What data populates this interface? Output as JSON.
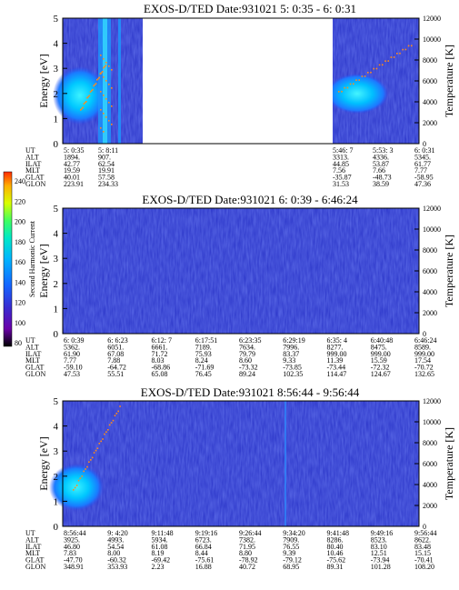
{
  "chart_data": [
    {
      "type": "heatmap",
      "title": "EXOS-D/TED   Date:931021  5: 0:35 - 6: 0:31",
      "ylabel": "Energy [eV]",
      "ylabel_right": "Temperature [K]",
      "ylim": [
        0,
        5
      ],
      "yticks": [
        "0",
        "1",
        "2",
        "3",
        "4",
        "5"
      ],
      "ylim_right": [
        0,
        12000
      ],
      "yticks_right": [
        "0",
        "2000",
        "4000",
        "6000",
        "8000",
        "10000",
        "12000"
      ],
      "data_gap": {
        "from": "5: 8:11",
        "to": "5:46: 7"
      },
      "ephemeris": [
        {
          "label": "UT",
          "values": [
            "5: 0:35",
            "5: 8:11",
            "5:46: 7",
            "5:53: 3",
            "6: 0:31"
          ]
        },
        {
          "label": "ALT",
          "values": [
            "1894.",
            "907.",
            "3313.",
            "4336.",
            "5345."
          ]
        },
        {
          "label": "ILAT",
          "values": [
            "42.77",
            "62.54",
            "44.85",
            "53.87",
            "61.77"
          ]
        },
        {
          "label": "MLT",
          "values": [
            "19.59",
            "19.91",
            "7.56",
            "7.66",
            "7.77"
          ]
        },
        {
          "label": "GLAT",
          "values": [
            "40.01",
            "57.58",
            "-35.87",
            "-48.73",
            "-58.95"
          ]
        },
        {
          "label": "GLON",
          "values": [
            "223.91",
            "234.33",
            "31.53",
            "38.59",
            "47.36"
          ]
        }
      ]
    },
    {
      "type": "heatmap",
      "title": "EXOS-D/TED   Date:931021  6: 0:39 - 6:46:24",
      "ylabel": "Energy [eV]",
      "ylabel_right": "Temperature [K]",
      "ylim": [
        0,
        5
      ],
      "yticks": [
        "0",
        "1",
        "2",
        "3",
        "4",
        "5"
      ],
      "ylim_right": [
        0,
        12000
      ],
      "yticks_right": [
        "0",
        "2000",
        "4000",
        "6000",
        "8000",
        "10000",
        "12000"
      ],
      "ephemeris": [
        {
          "label": "UT",
          "values": [
            "6: 0:39",
            "6: 6:23",
            "6:12: 7",
            "6:17:51",
            "6:23:35",
            "6:29:19",
            "6:35: 4",
            "6:40:48",
            "6:46:24"
          ]
        },
        {
          "label": "ALT",
          "values": [
            "5362.",
            "6051.",
            "6661.",
            "7189.",
            "7634.",
            "7996.",
            "8277.",
            "8475.",
            "8589."
          ]
        },
        {
          "label": "ILAT",
          "values": [
            "61.90",
            "67.08",
            "71.72",
            "75.93",
            "79.79",
            "83.37",
            "999.00",
            "999.00",
            "999.00"
          ]
        },
        {
          "label": "MLT",
          "values": [
            "7.77",
            "7.88",
            "8.03",
            "8.24",
            "8.60",
            "9.33",
            "11.39",
            "15.59",
            "17.54"
          ]
        },
        {
          "label": "GLAT",
          "values": [
            "-59.10",
            "-64.72",
            "-68.86",
            "-71.69",
            "-73.32",
            "-73.85",
            "-73.44",
            "-72.32",
            "-70.72"
          ]
        },
        {
          "label": "GLON",
          "values": [
            "47.53",
            "55.51",
            "65.08",
            "76.45",
            "89.24",
            "102.35",
            "114.47",
            "124.67",
            "132.65"
          ]
        }
      ]
    },
    {
      "type": "heatmap",
      "title": "EXOS-D/TED   Date:931021  8:56:44 - 9:56:44",
      "ylabel": "Energy [eV]",
      "ylabel_right": "Temperature [K]",
      "ylim": [
        0,
        5
      ],
      "yticks": [
        "0",
        "1",
        "2",
        "3",
        "4",
        "5"
      ],
      "ylim_right": [
        0,
        12000
      ],
      "yticks_right": [
        "0",
        "2000",
        "4000",
        "6000",
        "8000",
        "10000",
        "12000"
      ],
      "ephemeris": [
        {
          "label": "UT",
          "values": [
            "8:56:44",
            "9: 4:20",
            "9:11:48",
            "9:19:16",
            "9:26:44",
            "9:34:20",
            "9:41:48",
            "9:49:16",
            "9:56:44"
          ]
        },
        {
          "label": "ALT",
          "values": [
            "3925.",
            "4993.",
            "5934.",
            "6723.",
            "7382.",
            "7909.",
            "8286.",
            "8523.",
            "8622."
          ]
        },
        {
          "label": "ILAT",
          "values": [
            "46.80",
            "54.54",
            "61.08",
            "66.84",
            "71.95",
            "76.55",
            "80.40",
            "83.10",
            "83.48"
          ]
        },
        {
          "label": "MLT",
          "values": [
            "7.83",
            "8.00",
            "8.19",
            "8.44",
            "8.80",
            "9.39",
            "10.46",
            "12.51",
            "15.15"
          ]
        },
        {
          "label": "GLAT",
          "values": [
            "-47.70",
            "-60.32",
            "-69.42",
            "-75.61",
            "-78.92",
            "-79.12",
            "-75.62",
            "-73.94",
            "-70.41"
          ]
        },
        {
          "label": "GLON",
          "values": [
            "348.91",
            "353.93",
            "2.23",
            "16.88",
            "40.72",
            "68.95",
            "89.31",
            "101.28",
            "108.20"
          ]
        }
      ]
    }
  ],
  "colorbar": {
    "label": "Second Harmonic Current",
    "ticks": [
      "80",
      "100",
      "120",
      "140",
      "160",
      "180",
      "200",
      "220",
      "240"
    ],
    "colors": [
      "#000000",
      "#6a00a8",
      "#3a2bd0",
      "#1565ff",
      "#00b4ff",
      "#00e8c8",
      "#40ff60",
      "#d8ff00",
      "#ffb000",
      "#ff2a00"
    ]
  }
}
